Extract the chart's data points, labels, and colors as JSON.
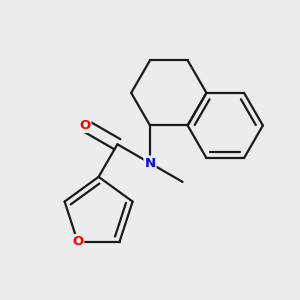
{
  "bg_color": "#ececec",
  "bond_color": "#1a1a1a",
  "bond_width": 1.6,
  "atom_colors": {
    "O": "#ff0000",
    "N": "#0000ff",
    "C": "#1a1a1a"
  },
  "font_size": 9.5
}
